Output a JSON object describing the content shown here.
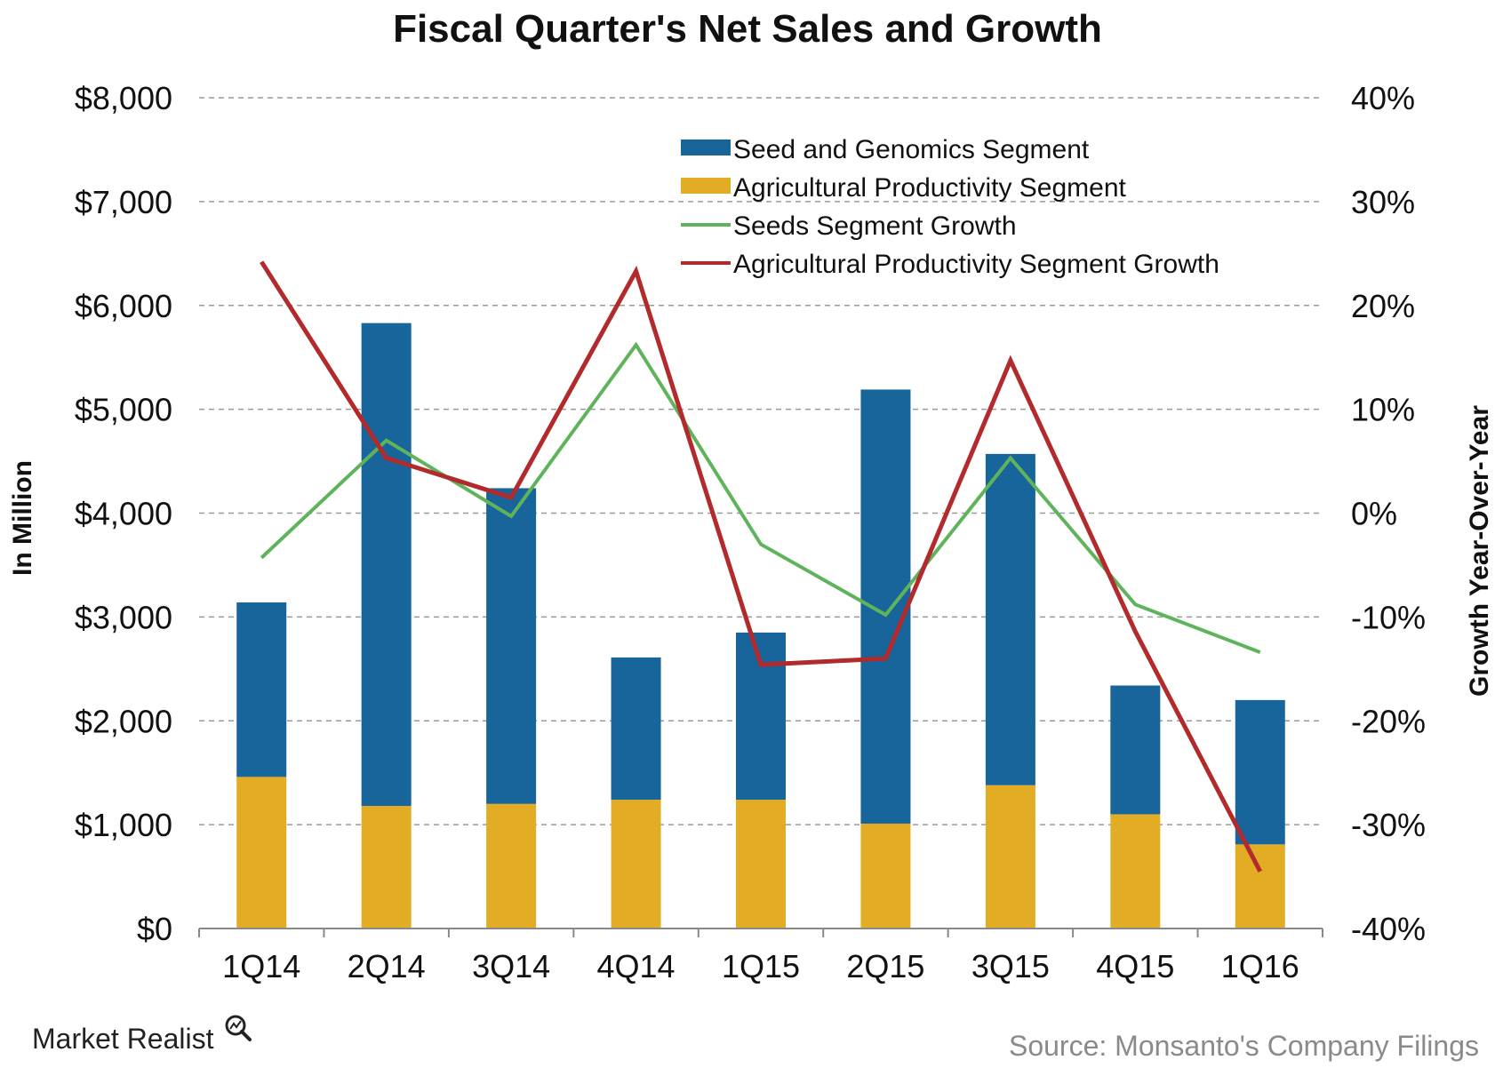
{
  "chart_data": {
    "type": "bar",
    "title": "Fiscal Quarter's Net Sales and Growth",
    "categories": [
      "1Q14",
      "2Q14",
      "3Q14",
      "4Q14",
      "1Q15",
      "2Q15",
      "3Q15",
      "4Q15",
      "1Q16"
    ],
    "ylabel": "In Million",
    "y2label": "Growth Year-Over-Year",
    "ylim": [
      0,
      8000
    ],
    "y2lim": [
      -40,
      40
    ],
    "yticks": [
      "$0",
      "$1,000",
      "$2,000",
      "$3,000",
      "$4,000",
      "$5,000",
      "$6,000",
      "$7,000",
      "$8,000"
    ],
    "y2ticks": [
      "-40%",
      "-30%",
      "-20%",
      "-10%",
      "0%",
      "10%",
      "20%",
      "30%",
      "40%"
    ],
    "grid": true,
    "legend_position": "top-right",
    "stacked": true,
    "series": [
      {
        "name": "Seed and Genomics Segment",
        "kind": "bar",
        "axis": "left",
        "color": "#17659b",
        "values": [
          1680,
          4650,
          3040,
          1370,
          1610,
          4180,
          3190,
          1240,
          1390
        ]
      },
      {
        "name": "Agricultural Productivity Segment",
        "kind": "bar",
        "axis": "left",
        "color": "#e3ac25",
        "values": [
          1460,
          1180,
          1200,
          1240,
          1240,
          1010,
          1380,
          1100,
          810
        ]
      },
      {
        "name": "Seeds Segment  Growth",
        "kind": "line",
        "axis": "right",
        "color": "#5fb45b",
        "values": [
          -4.3,
          7.0,
          -0.3,
          16.2,
          -3.0,
          -9.8,
          5.3,
          -8.8,
          -13.4
        ]
      },
      {
        "name": "Agricultural Productivity Segment Growth",
        "kind": "line",
        "axis": "right",
        "color": "#b22a2c",
        "values": [
          24.2,
          5.3,
          1.5,
          23.3,
          -14.6,
          -14.0,
          14.7,
          -11.4,
          -34.5
        ]
      }
    ]
  },
  "footer": {
    "brand": "Market Realist",
    "source": "Source: Monsanto's Company Filings"
  }
}
